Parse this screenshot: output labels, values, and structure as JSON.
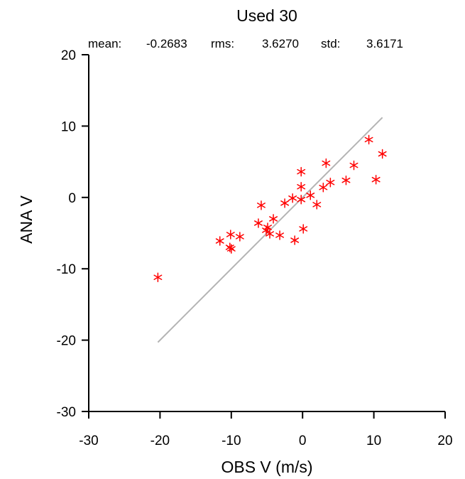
{
  "chart_data": {
    "type": "scatter",
    "title": "Used  30",
    "stats": {
      "mean_label": "mean:",
      "mean_value": "-0.2683",
      "rms_label": "rms:",
      "rms_value": "3.6270",
      "std_label": "std:",
      "std_value": "3.6171"
    },
    "xlabel": "OBS V  (m/s)",
    "ylabel": "ANA V",
    "xlim": [
      -30,
      20
    ],
    "ylim": [
      -30,
      20
    ],
    "xticks": [
      -30,
      -20,
      -10,
      0,
      10,
      20
    ],
    "yticks": [
      -30,
      -20,
      -10,
      0,
      10,
      20
    ],
    "grid": false,
    "marker": "asterisk",
    "marker_color": "#ff0000",
    "reference_line": {
      "color": "#b4b4b4",
      "x": [
        -20.3,
        11.2
      ],
      "y": [
        -20.3,
        11.2
      ]
    },
    "points": [
      [
        -20.3,
        -11.2
      ],
      [
        -11.6,
        -6.1
      ],
      [
        -10.1,
        -5.2
      ],
      [
        -10.2,
        -7.0
      ],
      [
        -10.0,
        -7.2
      ],
      [
        -8.8,
        -5.5
      ],
      [
        -6.2,
        -3.6
      ],
      [
        -5.8,
        -1.1
      ],
      [
        -5.1,
        -4.6
      ],
      [
        -4.9,
        -4.2
      ],
      [
        -4.6,
        -5.1
      ],
      [
        -4.1,
        -3.0
      ],
      [
        -3.2,
        -5.3
      ],
      [
        -2.5,
        -0.8
      ],
      [
        -1.4,
        -0.1
      ],
      [
        -1.1,
        -6.0
      ],
      [
        -0.2,
        3.6
      ],
      [
        -0.2,
        1.5
      ],
      [
        -0.2,
        -0.3
      ],
      [
        0.1,
        -4.4
      ],
      [
        1.1,
        0.3
      ],
      [
        2.0,
        -1.0
      ],
      [
        2.9,
        1.4
      ],
      [
        3.3,
        4.8
      ],
      [
        3.9,
        2.1
      ],
      [
        6.1,
        2.4
      ],
      [
        7.2,
        4.5
      ],
      [
        9.3,
        8.1
      ],
      [
        10.3,
        2.5
      ],
      [
        11.2,
        6.1
      ]
    ]
  }
}
